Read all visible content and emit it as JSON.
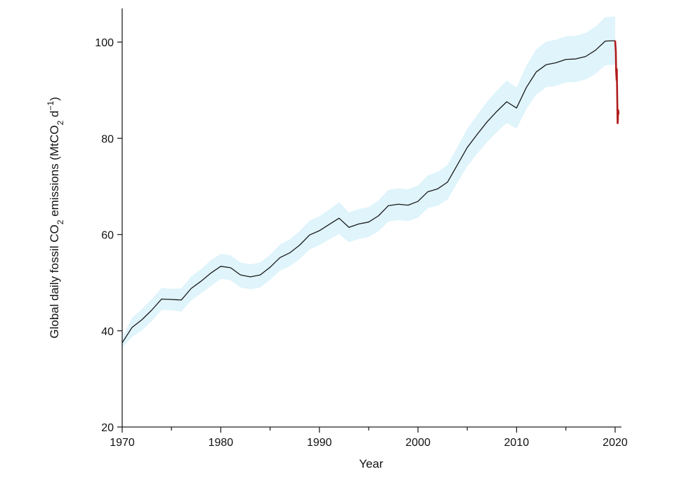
{
  "chart_data": {
    "type": "line",
    "xlabel": "Year",
    "ylabel": {
      "main": "Global daily fossil CO",
      "sub2": "2",
      "mid": " emissions (MtCO",
      "sub2b": "2",
      "tail": " d",
      "sup": "−1",
      "close": ")"
    },
    "xlim": [
      1970,
      2020.5
    ],
    "ylim": [
      20,
      107
    ],
    "x_ticks": [
      1970,
      1980,
      1990,
      2000,
      2010,
      2020
    ],
    "y_ticks": [
      20,
      40,
      60,
      80,
      100
    ],
    "grid": false,
    "colors": {
      "series": "#1a1a1a",
      "uncertainty_band": "#dff4fb",
      "recent": "#b01c1c"
    },
    "series": [
      {
        "x": [
          1970,
          1971,
          1972,
          1973,
          1974,
          1975,
          1976,
          1977,
          1978,
          1979,
          1980,
          1981,
          1982,
          1983,
          1984,
          1985,
          1986,
          1987,
          1988,
          1989,
          1990,
          1991,
          1992,
          1993,
          1994,
          1995,
          1996,
          1997,
          1998,
          1999,
          2000,
          2001,
          2002,
          2003,
          2004,
          2005,
          2006,
          2007,
          2008,
          2009,
          2010,
          2011,
          2012,
          2013,
          2014,
          2015,
          2016,
          2017,
          2018,
          2019,
          2020
        ],
        "y": [
          37.5,
          40.7,
          42.3,
          44.3,
          46.6,
          46.5,
          46.4,
          48.8,
          50.3,
          52.0,
          53.4,
          53.1,
          51.6,
          51.2,
          51.6,
          53.2,
          55.2,
          56.2,
          57.8,
          59.9,
          60.8,
          62.1,
          63.4,
          61.5,
          62.2,
          62.6,
          63.9,
          66.0,
          66.3,
          66.1,
          66.9,
          68.9,
          69.5,
          70.9,
          74.5,
          78.1,
          80.8,
          83.4,
          85.6,
          87.6,
          86.3,
          90.6,
          93.8,
          95.3,
          95.7,
          96.4,
          96.5,
          97.0,
          98.3,
          100.2,
          100.3
        ],
        "lower": [
          36.5,
          38.7,
          40.1,
          42.0,
          44.3,
          44.3,
          44.0,
          46.3,
          47.8,
          49.3,
          50.8,
          50.5,
          49.0,
          48.6,
          49.0,
          50.6,
          52.5,
          53.4,
          54.9,
          56.9,
          57.8,
          59.0,
          60.1,
          58.4,
          59.1,
          59.5,
          60.7,
          62.7,
          63.0,
          62.8,
          63.5,
          65.5,
          66.0,
          67.3,
          70.8,
          74.2,
          76.8,
          79.2,
          81.3,
          83.2,
          82.0,
          86.1,
          89.1,
          90.6,
          90.9,
          91.6,
          91.7,
          92.2,
          93.4,
          95.2,
          95.3
        ],
        "upper": [
          38.5,
          42.7,
          44.5,
          46.6,
          48.9,
          48.7,
          48.8,
          51.3,
          52.8,
          54.7,
          56.0,
          55.7,
          54.2,
          53.8,
          54.2,
          55.8,
          57.9,
          59.0,
          60.7,
          62.9,
          63.8,
          65.2,
          66.7,
          64.6,
          65.3,
          65.7,
          67.1,
          69.3,
          69.6,
          69.4,
          70.2,
          72.3,
          73.0,
          74.5,
          78.2,
          82.0,
          84.8,
          87.6,
          89.9,
          92.0,
          90.6,
          95.1,
          98.5,
          100.1,
          100.5,
          101.2,
          101.3,
          101.9,
          103.2,
          105.2,
          105.3
        ]
      }
    ],
    "recent_series": {
      "x": [
        2020.0,
        2020.07,
        2020.1,
        2020.15,
        2020.17,
        2020.2,
        2020.25,
        2020.28,
        2020.3,
        2020.35
      ],
      "y": [
        100.3,
        98.0,
        94.0,
        92.0,
        94.5,
        90.0,
        83.0,
        84.0,
        86.0,
        85.0
      ]
    }
  }
}
